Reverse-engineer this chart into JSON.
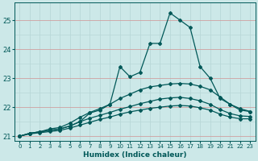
{
  "xlabel": "Humidex (Indice chaleur)",
  "bg_color": "#cce8e8",
  "grid_color_minor": "#b8d8d8",
  "grid_color_major": "#d0a0a0",
  "line_color": "#005858",
  "xlim": [
    -0.5,
    23.5
  ],
  "ylim": [
    20.85,
    25.6
  ],
  "yticks": [
    21,
    22,
    23,
    24,
    25
  ],
  "xticks": [
    0,
    1,
    2,
    3,
    4,
    5,
    6,
    7,
    8,
    9,
    10,
    11,
    12,
    13,
    14,
    15,
    16,
    17,
    18,
    19,
    20,
    21,
    22,
    23
  ],
  "series": [
    [
      21.0,
      21.1,
      21.15,
      21.2,
      21.25,
      21.35,
      21.5,
      21.8,
      21.9,
      22.1,
      23.4,
      23.05,
      23.2,
      24.2,
      24.2,
      25.25,
      25.0,
      24.75,
      23.4,
      23.0,
      22.3,
      22.1,
      21.9,
      21.85
    ],
    [
      21.0,
      21.1,
      21.15,
      21.25,
      21.3,
      21.45,
      21.65,
      21.82,
      21.95,
      22.1,
      22.3,
      22.45,
      22.6,
      22.7,
      22.75,
      22.8,
      22.82,
      22.8,
      22.72,
      22.6,
      22.35,
      22.1,
      21.95,
      21.85
    ],
    [
      21.0,
      21.1,
      21.15,
      21.2,
      21.25,
      21.35,
      21.5,
      21.62,
      21.72,
      21.82,
      21.93,
      22.02,
      22.12,
      22.2,
      22.28,
      22.32,
      22.34,
      22.3,
      22.22,
      22.1,
      21.92,
      21.78,
      21.7,
      21.68
    ],
    [
      21.0,
      21.08,
      21.12,
      21.16,
      21.2,
      21.28,
      21.38,
      21.48,
      21.58,
      21.66,
      21.76,
      21.84,
      21.9,
      21.96,
      22.0,
      22.04,
      22.06,
      22.04,
      21.98,
      21.9,
      21.76,
      21.66,
      21.6,
      21.6
    ]
  ],
  "marker": "D",
  "markersize": 2.0,
  "linewidth": 0.9
}
